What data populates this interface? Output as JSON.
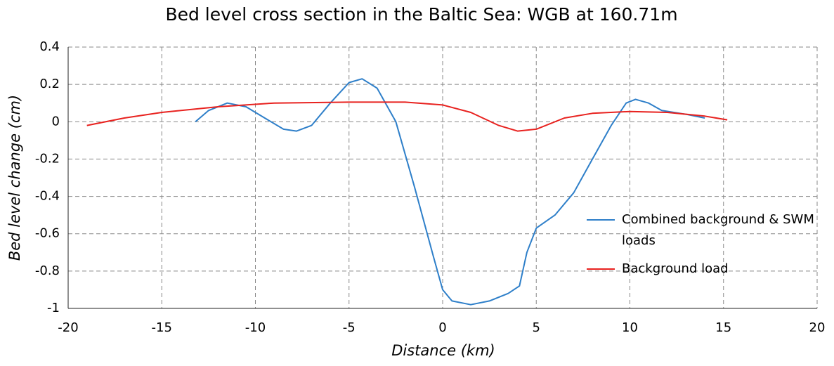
{
  "chart_data": {
    "type": "line",
    "title": "Bed level cross section in the Baltic Sea: WGB at 160.71m",
    "x_label": "Distance (km)",
    "y_label": "Bed level change (cm)",
    "xlim": [
      -20,
      20
    ],
    "xticks": [
      -20,
      -15,
      -10,
      -5,
      0,
      5,
      10,
      15,
      20
    ],
    "ylim": [
      -1,
      0.4
    ],
    "yticks": [
      -1,
      -0.8,
      -0.6,
      -0.4,
      -0.2,
      0,
      0.2,
      0.4
    ],
    "grid": true,
    "legend": "center right",
    "series": [
      {
        "name": "Combined background & SWM loads",
        "color": "#2e7fc9",
        "x": [
          -13.2,
          -12.5,
          -11.5,
          -10.5,
          -9.5,
          -8.5,
          -7.8,
          -7,
          -6,
          -5,
          -4.3,
          -3.5,
          -2.5,
          -1.5,
          -0.5,
          0,
          0.5,
          1.5,
          2.5,
          3.5,
          4.1,
          4.5,
          5,
          6,
          7,
          8,
          9,
          9.8,
          10.3,
          11,
          11.7,
          13,
          14
        ],
        "values": [
          0.0,
          0.06,
          0.1,
          0.08,
          0.02,
          -0.04,
          -0.05,
          -0.02,
          0.1,
          0.21,
          0.23,
          0.18,
          0.0,
          -0.35,
          -0.72,
          -0.9,
          -0.96,
          -0.98,
          -0.96,
          -0.92,
          -0.88,
          -0.7,
          -0.57,
          -0.5,
          -0.38,
          -0.2,
          -0.02,
          0.1,
          0.12,
          0.1,
          0.06,
          0.04,
          0.02
        ]
      },
      {
        "name": "Background load",
        "color": "#e8221f",
        "x": [
          -19,
          -17,
          -15,
          -12,
          -9,
          -5,
          -2,
          0,
          1.5,
          3,
          4,
          5,
          6.5,
          8,
          10,
          12,
          14,
          15.2
        ],
        "values": [
          -0.02,
          0.02,
          0.05,
          0.08,
          0.1,
          0.105,
          0.105,
          0.09,
          0.05,
          -0.02,
          -0.05,
          -0.04,
          0.02,
          0.045,
          0.055,
          0.05,
          0.03,
          0.01
        ]
      }
    ]
  }
}
